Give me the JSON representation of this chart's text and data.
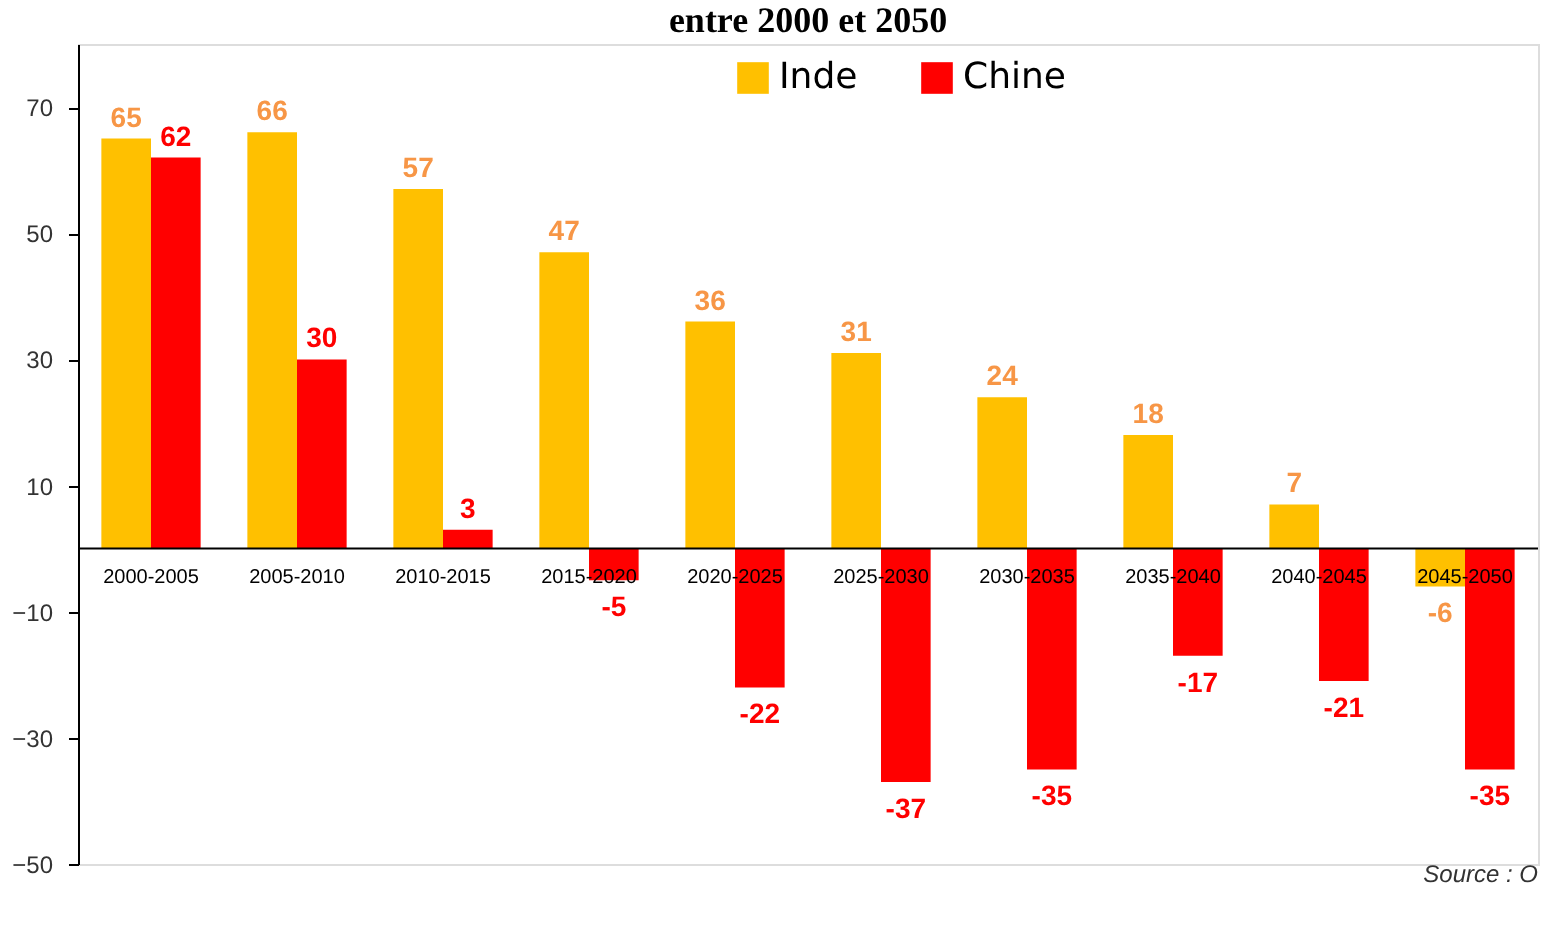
{
  "chart_data": {
    "type": "bar",
    "title": "entre 2000 et 2050",
    "categories": [
      "2000-2005",
      "2005-2010",
      "2010-2015",
      "2015-2020",
      "2020-2025",
      "2025-2030",
      "2030-2035",
      "2035-2040",
      "2040-2045",
      "2045-2050"
    ],
    "series": [
      {
        "name": "Inde",
        "color": "#ffc000",
        "values": [
          65,
          66,
          57,
          47,
          36,
          31,
          24,
          18,
          7,
          -6
        ]
      },
      {
        "name": "Chine",
        "color": "#ff0000",
        "values": [
          62,
          30,
          3,
          -5,
          -22,
          -37,
          -35,
          -17,
          -21,
          -35
        ]
      }
    ],
    "ylim": [
      -50,
      80
    ],
    "yticks": [
      70,
      50,
      30,
      10,
      -10,
      -30,
      -50
    ],
    "data_labels": true,
    "legend": "top",
    "grid": false,
    "annotations": [
      "Source : O"
    ]
  }
}
